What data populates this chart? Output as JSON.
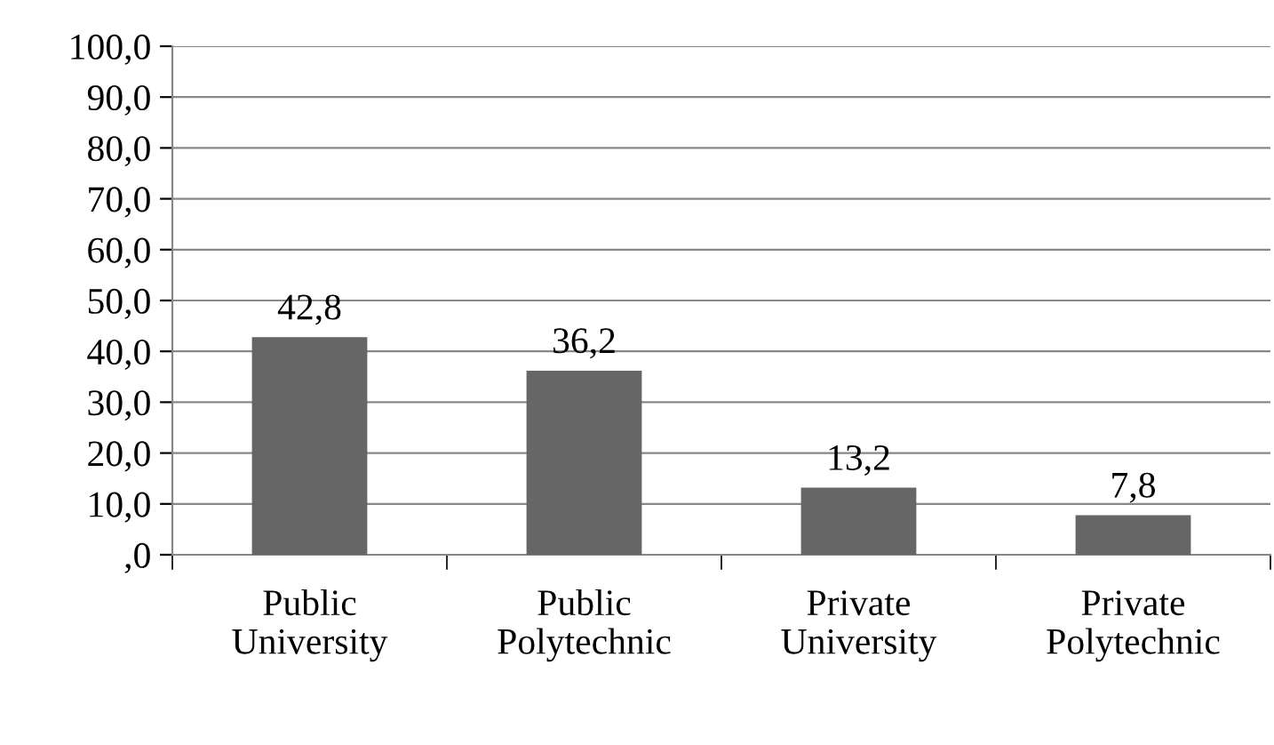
{
  "chart_data": {
    "type": "bar",
    "categories": [
      "Public\nUniversity",
      "Public\nPolytechnic",
      "Private\nUniversity",
      "Private\nPolytechnic"
    ],
    "values": [
      42.8,
      36.2,
      13.2,
      7.8
    ],
    "value_labels": [
      "42,8",
      "36,2",
      "13,2",
      "7,8"
    ],
    "color": "#666666",
    "ylim": [
      0,
      100
    ],
    "yticks": [
      {
        "value": 0,
        "label": ",0"
      },
      {
        "value": 10,
        "label": "10,0"
      },
      {
        "value": 20,
        "label": "20,0"
      },
      {
        "value": 30,
        "label": "30,0"
      },
      {
        "value": 40,
        "label": "40,0"
      },
      {
        "value": 50,
        "label": "50,0"
      },
      {
        "value": 60,
        "label": "60,0"
      },
      {
        "value": 70,
        "label": "70,0"
      },
      {
        "value": 80,
        "label": "80,0"
      },
      {
        "value": 90,
        "label": "90,0"
      },
      {
        "value": 100,
        "label": "100,0"
      }
    ],
    "grid": "y",
    "legend": false
  }
}
